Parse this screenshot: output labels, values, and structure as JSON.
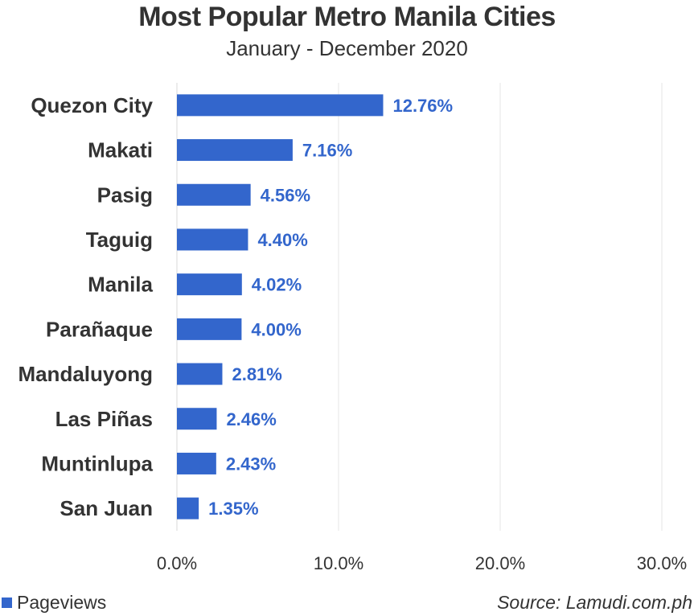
{
  "chart_data": {
    "type": "bar",
    "orientation": "horizontal",
    "title": "Most Popular Metro Manila Cities",
    "subtitle": "January - December 2020",
    "categories": [
      "Quezon City",
      "Makati",
      "Pasig",
      "Taguig",
      "Manila",
      "Parañaque",
      "Mandaluyong",
      "Las Piñas",
      "Muntinlupa",
      "San Juan"
    ],
    "series": [
      {
        "name": "Pageviews",
        "values": [
          12.76,
          7.16,
          4.56,
          4.4,
          4.02,
          4.0,
          2.81,
          2.46,
          2.43,
          1.35
        ],
        "labels": [
          "12.76%",
          "7.16%",
          "4.56%",
          "4.40%",
          "4.02%",
          "4.00%",
          "2.81%",
          "2.46%",
          "2.43%",
          "1.35%"
        ],
        "color": "#3366cc"
      }
    ],
    "xlim": [
      0,
      30
    ],
    "xticks": [
      0,
      10,
      20,
      30
    ],
    "xtick_labels": [
      "0.0%",
      "10.0%",
      "20.0%",
      "30.0%"
    ],
    "grid": true,
    "legend": "bottom-left",
    "source": "Source: Lamudi.com.ph"
  }
}
